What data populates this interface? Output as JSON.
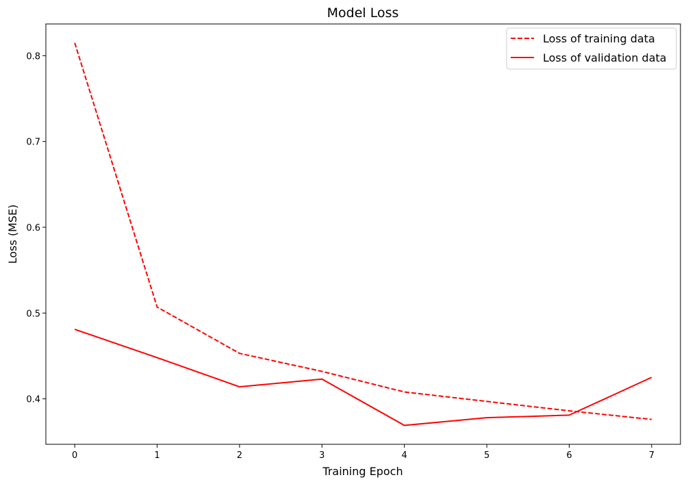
{
  "chart_data": {
    "type": "line",
    "title": "Model Loss",
    "xlabel": "Training Epoch",
    "ylabel": "Loss (MSE)",
    "x": [
      0,
      1,
      2,
      3,
      4,
      5,
      6,
      7
    ],
    "xticks": [
      0,
      1,
      2,
      3,
      4,
      5,
      6,
      7
    ],
    "yticks": [
      0.4,
      0.5,
      0.6,
      0.7,
      0.8
    ],
    "ytick_labels": [
      "0.4",
      "0.5",
      "0.6",
      "0.7",
      "0.8"
    ],
    "xlim": [
      -0.35,
      7.35
    ],
    "ylim": [
      0.347,
      0.837
    ],
    "grid": false,
    "legend_position": "top-right",
    "series": [
      {
        "name": "Loss of training data",
        "values": [
          0.815,
          0.507,
          0.453,
          0.432,
          0.408,
          0.397,
          0.386,
          0.376
        ],
        "color": "#ff0000",
        "style": "dashed"
      },
      {
        "name": "Loss of validation data",
        "values": [
          0.481,
          0.448,
          0.414,
          0.423,
          0.369,
          0.378,
          0.381,
          0.425
        ],
        "color": "#ff0000",
        "style": "solid"
      }
    ]
  }
}
